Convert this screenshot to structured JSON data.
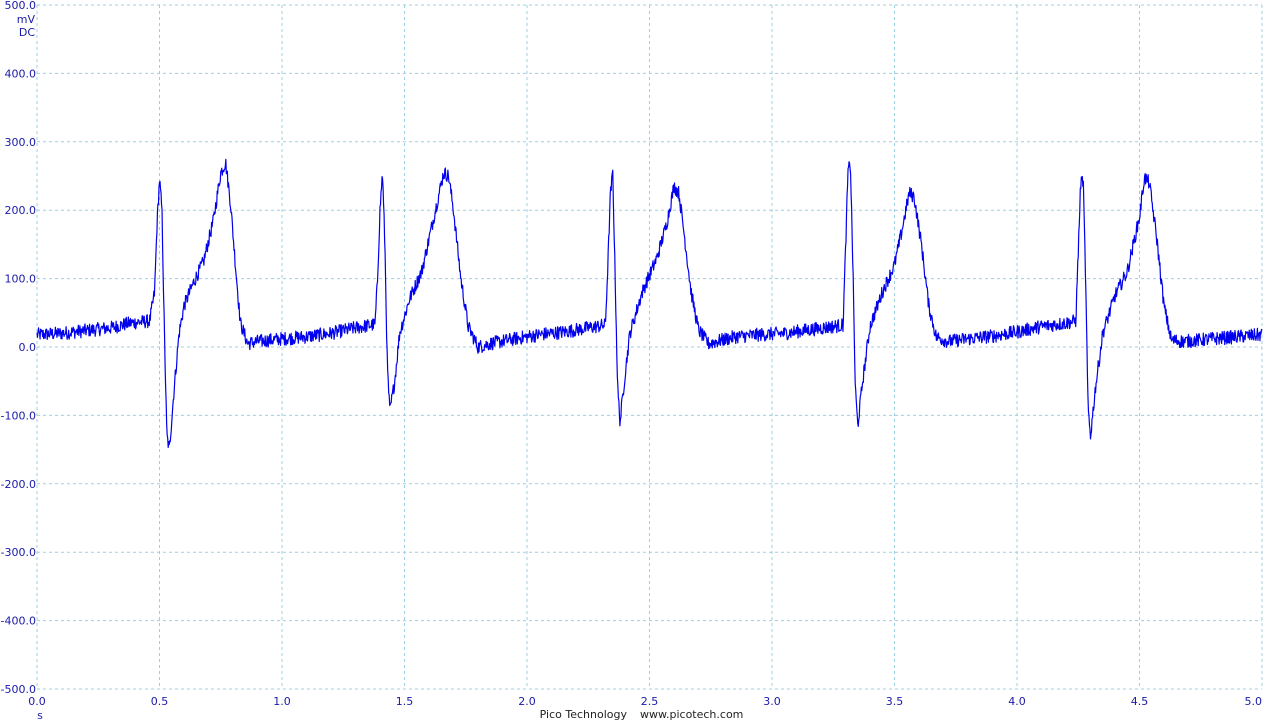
{
  "chart_data": {
    "type": "line",
    "title": "",
    "xlabel": "s",
    "ylabel": "mV",
    "coupling": "DC",
    "xlim": [
      0.0,
      5.0
    ],
    "ylim": [
      -500.0,
      500.0
    ],
    "x_ticks": [
      "0.0",
      "0.5",
      "1.0",
      "1.5",
      "2.0",
      "2.5",
      "3.0",
      "3.5",
      "4.0",
      "4.5",
      "5.0"
    ],
    "y_ticks": [
      "500.0",
      "400.0",
      "300.0",
      "200.0",
      "100.0",
      "0.0",
      "-100.0",
      "-200.0",
      "-300.0",
      "-400.0",
      "-500.0"
    ],
    "grid": true,
    "grid_color": "#9ecfe0",
    "line_color": "#0000ee",
    "label_color": "#1a1aa8",
    "noise_amplitude_mv": 10,
    "series": [
      {
        "points": [
          [
            0.0,
            18
          ],
          [
            0.1,
            20
          ],
          [
            0.2,
            24
          ],
          [
            0.3,
            28
          ],
          [
            0.38,
            35
          ],
          [
            0.46,
            38
          ],
          [
            0.48,
            80
          ],
          [
            0.49,
            180
          ],
          [
            0.5,
            245
          ],
          [
            0.51,
            200
          ],
          [
            0.52,
            20
          ],
          [
            0.53,
            -130
          ],
          [
            0.54,
            -150
          ],
          [
            0.56,
            -60
          ],
          [
            0.58,
            20
          ],
          [
            0.6,
            60
          ],
          [
            0.64,
            95
          ],
          [
            0.68,
            125
          ],
          [
            0.72,
            185
          ],
          [
            0.75,
            255
          ],
          [
            0.77,
            270
          ],
          [
            0.79,
            210
          ],
          [
            0.81,
            120
          ],
          [
            0.83,
            35
          ],
          [
            0.86,
            5
          ],
          [
            0.9,
            8
          ],
          [
            1.0,
            12
          ],
          [
            1.1,
            15
          ],
          [
            1.2,
            20
          ],
          [
            1.3,
            28
          ],
          [
            1.38,
            33
          ],
          [
            1.39,
            100
          ],
          [
            1.4,
            200
          ],
          [
            1.41,
            255
          ],
          [
            1.42,
            150
          ],
          [
            1.43,
            -30
          ],
          [
            1.44,
            -95
          ],
          [
            1.46,
            -50
          ],
          [
            1.48,
            20
          ],
          [
            1.52,
            70
          ],
          [
            1.57,
            110
          ],
          [
            1.62,
            190
          ],
          [
            1.66,
            255
          ],
          [
            1.68,
            250
          ],
          [
            1.7,
            200
          ],
          [
            1.73,
            100
          ],
          [
            1.76,
            30
          ],
          [
            1.8,
            0
          ],
          [
            1.85,
            5
          ],
          [
            1.95,
            12
          ],
          [
            2.05,
            18
          ],
          [
            2.15,
            22
          ],
          [
            2.25,
            28
          ],
          [
            2.32,
            32
          ],
          [
            2.33,
            120
          ],
          [
            2.34,
            220
          ],
          [
            2.35,
            255
          ],
          [
            2.36,
            100
          ],
          [
            2.37,
            -60
          ],
          [
            2.38,
            -110
          ],
          [
            2.4,
            -40
          ],
          [
            2.42,
            20
          ],
          [
            2.47,
            80
          ],
          [
            2.53,
            130
          ],
          [
            2.57,
            180
          ],
          [
            2.6,
            235
          ],
          [
            2.62,
            225
          ],
          [
            2.64,
            170
          ],
          [
            2.67,
            80
          ],
          [
            2.7,
            25
          ],
          [
            2.74,
            5
          ],
          [
            2.85,
            15
          ],
          [
            2.95,
            18
          ],
          [
            3.05,
            20
          ],
          [
            3.15,
            25
          ],
          [
            3.25,
            30
          ],
          [
            3.29,
            32
          ],
          [
            3.3,
            140
          ],
          [
            3.31,
            255
          ],
          [
            3.32,
            270
          ],
          [
            3.33,
            120
          ],
          [
            3.34,
            -60
          ],
          [
            3.35,
            -115
          ],
          [
            3.37,
            -50
          ],
          [
            3.4,
            30
          ],
          [
            3.45,
            80
          ],
          [
            3.5,
            120
          ],
          [
            3.53,
            170
          ],
          [
            3.56,
            225
          ],
          [
            3.58,
            220
          ],
          [
            3.61,
            150
          ],
          [
            3.64,
            60
          ],
          [
            3.67,
            15
          ],
          [
            3.72,
            8
          ],
          [
            3.8,
            12
          ],
          [
            3.9,
            16
          ],
          [
            4.0,
            22
          ],
          [
            4.1,
            30
          ],
          [
            4.2,
            35
          ],
          [
            4.24,
            38
          ],
          [
            4.25,
            140
          ],
          [
            4.26,
            240
          ],
          [
            4.27,
            245
          ],
          [
            4.28,
            100
          ],
          [
            4.29,
            -90
          ],
          [
            4.3,
            -130
          ],
          [
            4.32,
            -60
          ],
          [
            4.35,
            20
          ],
          [
            4.4,
            75
          ],
          [
            4.45,
            110
          ],
          [
            4.5,
            190
          ],
          [
            4.52,
            248
          ],
          [
            4.54,
            240
          ],
          [
            4.57,
            160
          ],
          [
            4.6,
            60
          ],
          [
            4.63,
            10
          ],
          [
            4.68,
            8
          ],
          [
            4.8,
            12
          ],
          [
            4.9,
            15
          ],
          [
            5.0,
            18
          ]
        ]
      }
    ]
  },
  "footer": {
    "brand": "Pico Technology",
    "url": "www.picotech.com"
  }
}
